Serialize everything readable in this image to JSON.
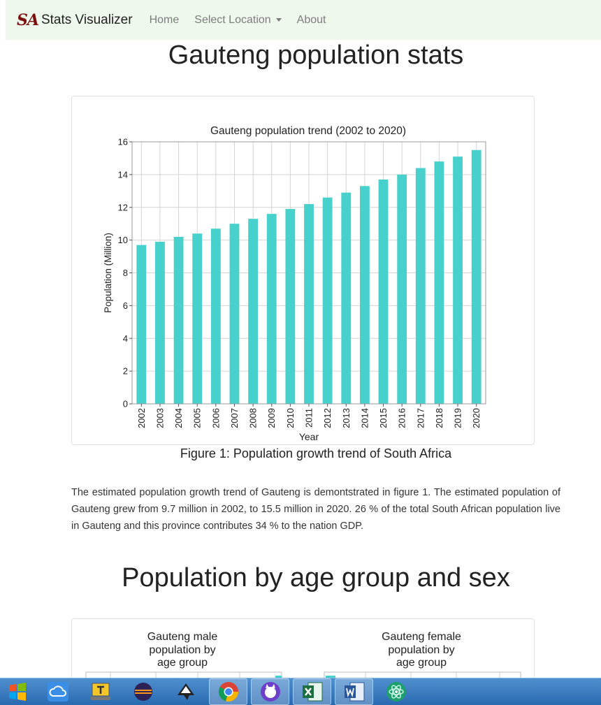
{
  "navbar": {
    "logo_text": "SA",
    "brand": "Stats Visualizer",
    "links": {
      "home": "Home",
      "select_location": "Select Location",
      "about": "About"
    }
  },
  "page_title": "Gauteng population stats",
  "figure1": {
    "caption": "Figure 1: Population growth trend of South Africa"
  },
  "paragraph": "The estimated population growth trend of Gauteng is demontstrated in figure 1. The estimated population of Gauteng grew from 9.7 million in 2002, to 15.5 million in 2020. 26 % of the total South African population live in Gauteng and this province contributes 34 % to the nation GDP.",
  "section2_title": "Population by age group and sex",
  "age_charts": {
    "male_title": [
      "Gauteng male",
      "population by",
      "age group"
    ],
    "female_title": [
      "Gauteng female",
      "population by",
      "age group"
    ]
  },
  "chart_data": {
    "type": "bar",
    "title": "Gauteng population trend (2002 to 2020)",
    "xlabel": "Year",
    "ylabel": "Population (Million)",
    "ylim": [
      0,
      16
    ],
    "yticks": [
      0,
      2,
      4,
      6,
      8,
      10,
      12,
      14,
      16
    ],
    "grid": true,
    "color": "#48d1cc",
    "categories": [
      "2002",
      "2003",
      "2004",
      "2005",
      "2006",
      "2007",
      "2008",
      "2009",
      "2010",
      "2011",
      "2012",
      "2013",
      "2014",
      "2015",
      "2016",
      "2017",
      "2018",
      "2019",
      "2020"
    ],
    "values": [
      9.7,
      9.9,
      10.2,
      10.4,
      10.7,
      11.0,
      11.3,
      11.6,
      11.9,
      12.2,
      12.6,
      12.9,
      13.3,
      13.7,
      14.0,
      14.4,
      14.8,
      15.1,
      15.5
    ]
  },
  "taskbar": {
    "icons": [
      "windows-start-icon",
      "cloud-icon",
      "keyboard-icon",
      "eclipse-icon",
      "inkscape-icon",
      "chrome-icon",
      "github-desktop-icon",
      "excel-icon",
      "word-icon",
      "atom-icon"
    ]
  }
}
